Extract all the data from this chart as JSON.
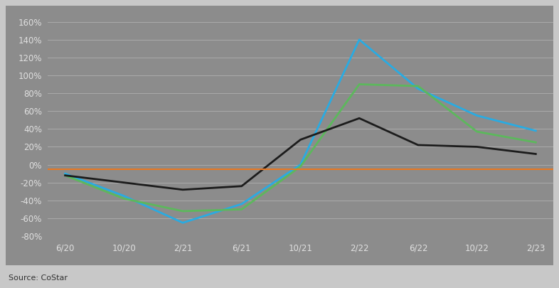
{
  "x_labels": [
    "6/20",
    "10/20",
    "2/21",
    "6/21",
    "10/21",
    "2/22",
    "6/22",
    "10/22",
    "2/23"
  ],
  "x_positions": [
    0,
    1,
    2,
    3,
    4,
    5,
    6,
    7,
    8
  ],
  "luxury": [
    -10,
    -35,
    -65,
    -44,
    0,
    140,
    85,
    55,
    38
  ],
  "upscale": [
    -12,
    -38,
    -52,
    -50,
    -2,
    90,
    88,
    37,
    25
  ],
  "midscale": [
    -12,
    -20,
    -28,
    -24,
    28,
    52,
    22,
    20,
    12
  ],
  "orange_line": -5,
  "line_colors": {
    "luxury": "#29ABE2",
    "upscale": "#5CB85C",
    "midscale": "#1C1C1C",
    "reference": "#E87722"
  },
  "ylim": [
    -80,
    165
  ],
  "yticks": [
    -80,
    -60,
    -40,
    -20,
    0,
    20,
    40,
    60,
    80,
    100,
    120,
    140,
    160
  ],
  "chart_bg_color": "#8C8C8C",
  "outer_bg_color": "#C8C8C8",
  "grid_color": "#AAAAAA",
  "source_text": "Source: CoStar",
  "tick_label_color": "#E0E0E0"
}
